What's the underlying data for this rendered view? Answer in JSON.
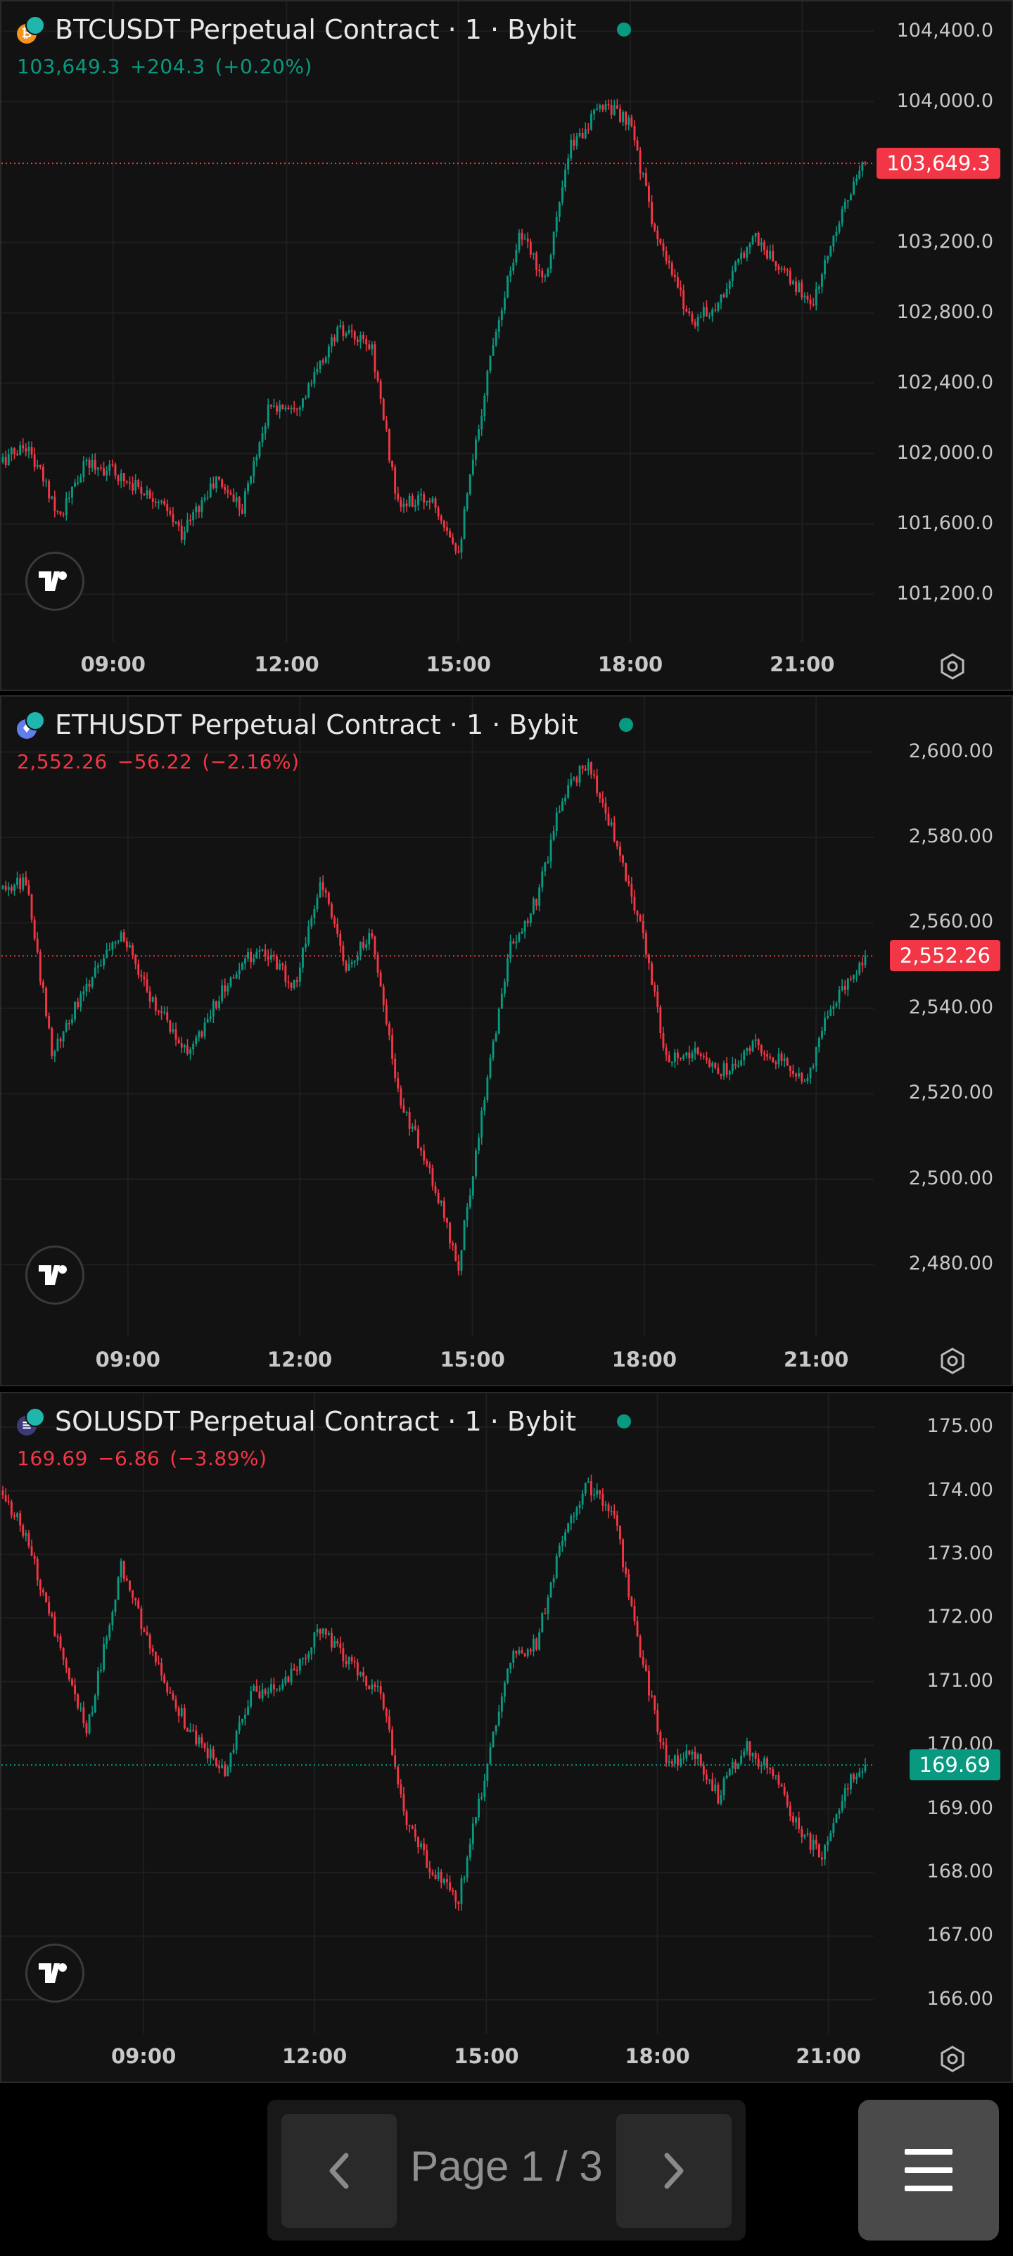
{
  "colors": {
    "up": "#089981",
    "down": "#f23645",
    "background": "#121212",
    "grid": "#1e1e1e"
  },
  "panels": [
    {
      "title": "BTCUSDT Perpetual Contract · 1 · Bybit",
      "coin_glyph": "₿",
      "coin_color": "#f7931a",
      "price": "103,649.3",
      "change": "+204.3",
      "change_pct": "(+0.20%)",
      "direction": "up",
      "price_tag": "103,649.3",
      "price_tag_color": "#f23645",
      "y_ticks": [
        "104,400.0",
        "104,000.0",
        "103,200.0",
        "102,800.0",
        "102,400.0",
        "102,000.0",
        "101,600.0",
        "101,200.0"
      ],
      "x_ticks": [
        "09:00",
        "12:00",
        "15:00",
        "18:00",
        "21:00"
      ],
      "chart_data": {
        "type": "candlestick",
        "ylim": [
          101050,
          104450
        ],
        "last": 103649.3,
        "start_time": "06:50",
        "end_time": "22:20",
        "path": [
          [
            0,
            101950
          ],
          [
            0.03,
            102050
          ],
          [
            0.07,
            101650
          ],
          [
            0.1,
            101950
          ],
          [
            0.13,
            101900
          ],
          [
            0.18,
            101750
          ],
          [
            0.21,
            101550
          ],
          [
            0.25,
            101850
          ],
          [
            0.28,
            101700
          ],
          [
            0.31,
            102250
          ],
          [
            0.35,
            102300
          ],
          [
            0.39,
            102700
          ],
          [
            0.43,
            102600
          ],
          [
            0.46,
            101700
          ],
          [
            0.5,
            101750
          ],
          [
            0.53,
            101450
          ],
          [
            0.57,
            102650
          ],
          [
            0.6,
            103250
          ],
          [
            0.63,
            103000
          ],
          [
            0.66,
            103750
          ],
          [
            0.7,
            104000
          ],
          [
            0.73,
            103850
          ],
          [
            0.76,
            103200
          ],
          [
            0.8,
            102750
          ],
          [
            0.83,
            102850
          ],
          [
            0.87,
            103250
          ],
          [
            0.9,
            103050
          ],
          [
            0.94,
            102850
          ],
          [
            0.97,
            103350
          ],
          [
            1.0,
            103649
          ]
        ]
      }
    },
    {
      "title": "ETHUSDT Perpetual Contract · 1 · Bybit",
      "coin_glyph": "♦",
      "coin_color": "#627eea",
      "price": "2,552.26",
      "change": "−56.22",
      "change_pct": "(−2.16%)",
      "direction": "down",
      "price_tag": "2,552.26",
      "price_tag_color": "#f23645",
      "y_ticks": [
        "2,600.00",
        "2,580.00",
        "2,560.00",
        "2,540.00",
        "2,520.00",
        "2,500.00",
        "2,480.00"
      ],
      "x_ticks": [
        "09:00",
        "12:00",
        "15:00",
        "18:00",
        "21:00"
      ],
      "chart_data": {
        "type": "candlestick",
        "ylim": [
          2468,
          2608
        ],
        "last": 2552.26,
        "start_time": "06:50",
        "end_time": "22:20",
        "path": [
          [
            0,
            2568
          ],
          [
            0.03,
            2570
          ],
          [
            0.06,
            2530
          ],
          [
            0.1,
            2545
          ],
          [
            0.14,
            2558
          ],
          [
            0.18,
            2540
          ],
          [
            0.22,
            2530
          ],
          [
            0.26,
            2545
          ],
          [
            0.3,
            2555
          ],
          [
            0.34,
            2545
          ],
          [
            0.37,
            2570
          ],
          [
            0.4,
            2550
          ],
          [
            0.43,
            2558
          ],
          [
            0.46,
            2520
          ],
          [
            0.5,
            2500
          ],
          [
            0.53,
            2480
          ],
          [
            0.56,
            2520
          ],
          [
            0.59,
            2555
          ],
          [
            0.62,
            2565
          ],
          [
            0.65,
            2590
          ],
          [
            0.68,
            2598
          ],
          [
            0.71,
            2580
          ],
          [
            0.74,
            2560
          ],
          [
            0.77,
            2528
          ],
          [
            0.8,
            2530
          ],
          [
            0.84,
            2525
          ],
          [
            0.87,
            2532
          ],
          [
            0.9,
            2528
          ],
          [
            0.93,
            2522
          ],
          [
            0.96,
            2540
          ],
          [
            1.0,
            2552
          ]
        ]
      }
    },
    {
      "title": "SOLUSDT Perpetual Contract · 1 · Bybit",
      "coin_glyph": "≡",
      "coin_color": "#3b3b7a",
      "price": "169.69",
      "change": "−6.86",
      "change_pct": "(−3.89%)",
      "direction": "down",
      "price_tag": "169.69",
      "price_tag_color": "#089981",
      "y_ticks": [
        "175.00",
        "174.00",
        "173.00",
        "172.00",
        "171.00",
        "170.00",
        "169.00",
        "168.00",
        "167.00",
        "166.00"
      ],
      "x_ticks": [
        "09:00",
        "12:00",
        "15:00",
        "18:00",
        "21:00"
      ],
      "chart_data": {
        "type": "candlestick",
        "ylim": [
          165.8,
          175.2
        ],
        "last": 169.69,
        "start_time": "06:50",
        "end_time": "22:20",
        "path": [
          [
            0,
            174.0
          ],
          [
            0.03,
            173.3
          ],
          [
            0.07,
            171.5
          ],
          [
            0.1,
            170.2
          ],
          [
            0.14,
            172.8
          ],
          [
            0.18,
            171.3
          ],
          [
            0.22,
            170.2
          ],
          [
            0.26,
            169.6
          ],
          [
            0.29,
            170.8
          ],
          [
            0.33,
            171.0
          ],
          [
            0.37,
            171.8
          ],
          [
            0.41,
            171.2
          ],
          [
            0.44,
            170.8
          ],
          [
            0.47,
            168.8
          ],
          [
            0.5,
            168.0
          ],
          [
            0.53,
            167.6
          ],
          [
            0.56,
            169.5
          ],
          [
            0.59,
            171.4
          ],
          [
            0.62,
            171.6
          ],
          [
            0.65,
            173.3
          ],
          [
            0.68,
            174.1
          ],
          [
            0.71,
            173.6
          ],
          [
            0.74,
            171.5
          ],
          [
            0.77,
            169.7
          ],
          [
            0.8,
            169.9
          ],
          [
            0.83,
            169.2
          ],
          [
            0.86,
            170.0
          ],
          [
            0.89,
            169.6
          ],
          [
            0.92,
            168.8
          ],
          [
            0.95,
            168.2
          ],
          [
            0.98,
            169.4
          ],
          [
            1.0,
            169.69
          ]
        ]
      }
    }
  ],
  "pager": {
    "label": "Page 1 / 3"
  }
}
